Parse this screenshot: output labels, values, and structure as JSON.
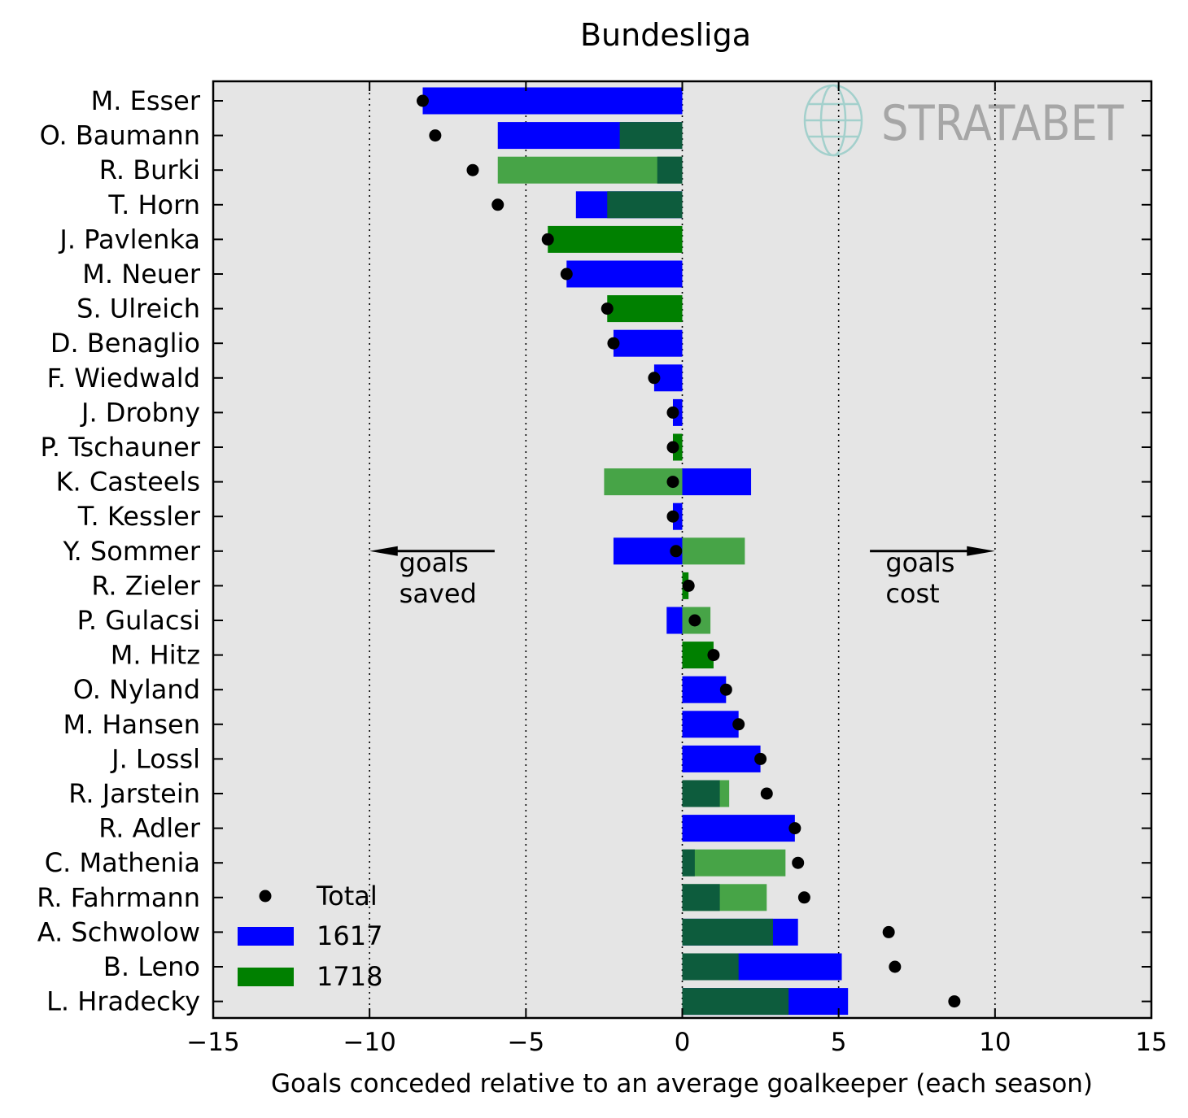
{
  "chart_data": {
    "type": "bar",
    "title": "Bundesliga",
    "xlabel": "Goals conceded relative to an average goalkeeper (each season)",
    "ylabel": "",
    "xlim": [
      -15,
      15
    ],
    "xticks": [
      -15,
      -10,
      -5,
      0,
      5,
      10,
      15
    ],
    "xtick_labels": [
      "−15",
      "−10",
      "−5",
      "0",
      "5",
      "10",
      "15"
    ],
    "grid": "vertical dotted lines at -10, -5, 0, 5, 10",
    "legend_position": "lower-left",
    "legend": [
      {
        "label": "Total",
        "marker": "dot"
      },
      {
        "label": "1617",
        "marker": "bar"
      },
      {
        "label": "1718",
        "marker": "bar"
      }
    ],
    "annotations": [
      {
        "text": "goals\nsaved",
        "arrow": "left"
      },
      {
        "text": "goals\ncost",
        "arrow": "right"
      }
    ],
    "watermark": "STRATABET",
    "colors": {
      "1617": "#0000ff",
      "1718": "#008000",
      "plot_bg": "#e5e5e5"
    },
    "categories": [
      "M. Esser",
      "O. Baumann",
      "R. Burki",
      "T. Horn",
      "J. Pavlenka",
      "M. Neuer",
      "S. Ulreich",
      "D. Benaglio",
      "F. Wiedwald",
      "J. Drobny",
      "P. Tschauner",
      "K. Casteels",
      "T. Kessler",
      "Y. Sommer",
      "R. Zieler",
      "P. Gulacsi",
      "M. Hitz",
      "O. Nyland",
      "M. Hansen",
      "J. Lossl",
      "R. Jarstein",
      "R. Adler",
      "C. Mathenia",
      "R. Fahrmann",
      "A. Schwolow",
      "B. Leno",
      "L. Hradecky"
    ],
    "series": [
      {
        "name": "1617",
        "values": [
          -8.3,
          -5.9,
          -0.8,
          -3.4,
          0,
          -3.7,
          0,
          -2.2,
          -0.9,
          -0.3,
          0,
          2.2,
          -0.3,
          -2.2,
          0,
          -0.5,
          0,
          1.4,
          1.8,
          2.5,
          1.2,
          3.6,
          0.4,
          1.2,
          3.7,
          5.1,
          5.3
        ]
      },
      {
        "name": "1718",
        "values": [
          0,
          -2.0,
          -5.9,
          -2.4,
          -4.3,
          0,
          -2.4,
          0,
          0,
          0,
          -0.3,
          -2.5,
          0,
          2.0,
          0.2,
          0.9,
          1.0,
          0,
          0,
          0,
          1.5,
          0,
          3.3,
          2.7,
          2.9,
          1.8,
          3.4
        ]
      },
      {
        "name": "Total",
        "values": [
          -8.3,
          -7.9,
          -6.7,
          -5.9,
          -4.3,
          -3.7,
          -2.4,
          -2.2,
          -0.9,
          -0.3,
          -0.3,
          -0.3,
          -0.3,
          -0.2,
          0.2,
          0.4,
          1.0,
          1.4,
          1.8,
          2.5,
          2.7,
          3.6,
          3.7,
          3.9,
          6.6,
          6.8,
          8.7
        ]
      }
    ]
  }
}
